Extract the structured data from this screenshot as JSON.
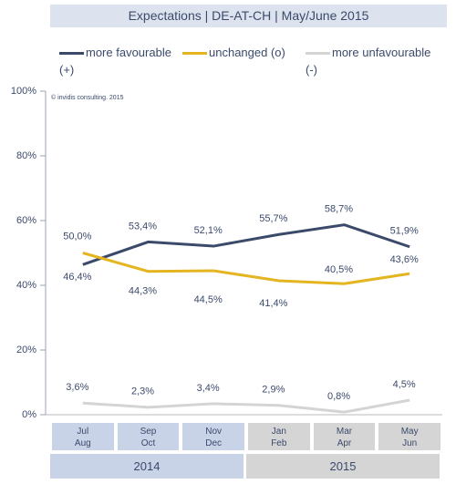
{
  "chart_data": {
    "type": "line",
    "title": "Expectations | DE-AT-CH | May/June 2015",
    "annotation": "© invidis consulting. 2015",
    "categories": [
      "Jul\nAug",
      "Sep\nOct",
      "Nov\nDec",
      "Jan\nFeb",
      "Mar\nApr",
      "May\nJun"
    ],
    "groups": [
      "2014",
      "2015"
    ],
    "series": [
      {
        "name": "more favourable (+)",
        "color": "#3b4a6b",
        "values": [
          46.4,
          53.4,
          52.1,
          55.7,
          58.7,
          51.9
        ],
        "value_labels": [
          "46,4%",
          "53,4%",
          "52,1%",
          "55,7%",
          "58,7%",
          "51,9%"
        ]
      },
      {
        "name": "unchanged (o)",
        "color": "#e4b520",
        "values": [
          50.0,
          44.3,
          44.5,
          41.4,
          40.5,
          43.6
        ],
        "value_labels": [
          "50,0%",
          "44,3%",
          "44,5%",
          "41,4%",
          "40,5%",
          "43,6%"
        ]
      },
      {
        "name": "more unfavourable (-)",
        "color": "#d4d4d4",
        "values": [
          3.6,
          2.3,
          3.4,
          2.9,
          0.8,
          4.5
        ],
        "value_labels": [
          "3,6%",
          "2,3%",
          "3,4%",
          "2,9%",
          "0,8%",
          "4,5%"
        ]
      }
    ],
    "ylim": [
      0,
      100
    ],
    "yticks": [
      {
        "value": 0,
        "label": "0%"
      },
      {
        "value": 20,
        "label": "20%"
      },
      {
        "value": 40,
        "label": "40%"
      },
      {
        "value": 60,
        "label": "60%"
      },
      {
        "value": 80,
        "label": "80%"
      },
      {
        "value": 100,
        "label": "100%"
      }
    ]
  }
}
